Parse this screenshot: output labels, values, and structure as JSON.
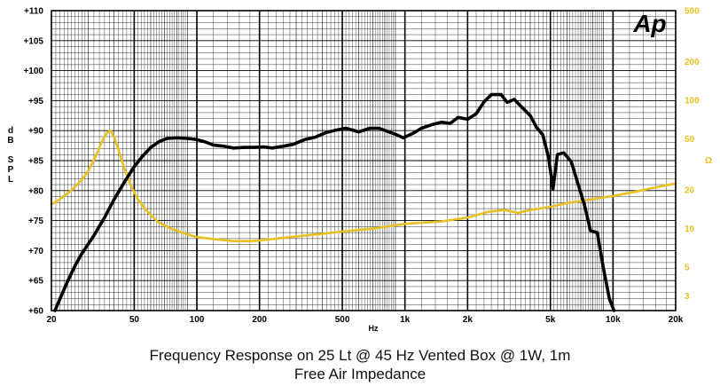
{
  "chart_data": {
    "type": "line",
    "caption_line1": "Frequency Response on 25 Lt @ 45 Hz Vented Box @ 1W, 1m",
    "caption_line2": "Free Air Impedance",
    "logo": "Ap",
    "x_axis": {
      "label": "Hz",
      "scale": "log",
      "range": [
        20,
        20000
      ],
      "tick_labels": [
        {
          "value": 20,
          "label": "20"
        },
        {
          "value": 50,
          "label": "50"
        },
        {
          "value": 100,
          "label": "100"
        },
        {
          "value": 200,
          "label": "200"
        },
        {
          "value": 500,
          "label": "500"
        },
        {
          "value": 1000,
          "label": "1k"
        },
        {
          "value": 2000,
          "label": "2k"
        },
        {
          "value": 5000,
          "label": "5k"
        },
        {
          "value": 10000,
          "label": "10k"
        },
        {
          "value": 20000,
          "label": "20k"
        }
      ]
    },
    "y_left": {
      "label": "dB SPL",
      "label_lines": [
        "d",
        "B",
        "",
        "S",
        "P",
        "L"
      ],
      "range": [
        60,
        110
      ],
      "tick_labels": [
        {
          "value": 110,
          "label": "+110"
        },
        {
          "value": 105,
          "label": "+105"
        },
        {
          "value": 100,
          "label": "+100"
        },
        {
          "value": 95,
          "label": "+95"
        },
        {
          "value": 90,
          "label": "+90"
        },
        {
          "value": 85,
          "label": "+85"
        },
        {
          "value": 80,
          "label": "+80"
        },
        {
          "value": 75,
          "label": "+75"
        },
        {
          "value": 70,
          "label": "+70"
        },
        {
          "value": 65,
          "label": "+65"
        },
        {
          "value": 60,
          "label": "+60"
        }
      ]
    },
    "y_right": {
      "label": "Ω",
      "scale": "log",
      "range": [
        2.3,
        500
      ],
      "tick_labels": [
        {
          "value": 500,
          "label": "500"
        },
        {
          "value": 200,
          "label": "200"
        },
        {
          "value": 100,
          "label": "100"
        },
        {
          "value": 50,
          "label": "50"
        },
        {
          "value": 20,
          "label": "20"
        },
        {
          "value": 10,
          "label": "10"
        },
        {
          "value": 5,
          "label": "5"
        },
        {
          "value": 3,
          "label": "3"
        }
      ]
    },
    "grid": true,
    "series": [
      {
        "axis": "left",
        "color": "#000000",
        "points": [
          [
            20.8,
            60
          ],
          [
            22,
            62
          ],
          [
            24,
            65
          ],
          [
            26,
            67.5
          ],
          [
            28,
            69.5
          ],
          [
            32,
            72.5
          ],
          [
            36,
            75.5
          ],
          [
            40,
            78.5
          ],
          [
            45,
            81.5
          ],
          [
            50,
            84
          ],
          [
            55,
            85.8
          ],
          [
            60,
            87.2
          ],
          [
            66,
            88.2
          ],
          [
            72,
            88.7
          ],
          [
            80,
            88.8
          ],
          [
            90,
            88.7
          ],
          [
            100,
            88.5
          ],
          [
            110,
            88.1
          ],
          [
            120,
            87.6
          ],
          [
            135,
            87.4
          ],
          [
            150,
            87.1
          ],
          [
            170,
            87.2
          ],
          [
            190,
            87.2
          ],
          [
            210,
            87.3
          ],
          [
            230,
            87.1
          ],
          [
            260,
            87.4
          ],
          [
            290,
            87.7
          ],
          [
            330,
            88.5
          ],
          [
            370,
            88.9
          ],
          [
            420,
            89.7
          ],
          [
            470,
            90.1
          ],
          [
            520,
            90.4
          ],
          [
            600,
            89.8
          ],
          [
            680,
            90.4
          ],
          [
            750,
            90.4
          ],
          [
            820,
            89.9
          ],
          [
            900,
            89.4
          ],
          [
            980,
            88.8
          ],
          [
            1040,
            89.2
          ],
          [
            1100,
            89.6
          ],
          [
            1200,
            90.4
          ],
          [
            1350,
            91.0
          ],
          [
            1500,
            91.4
          ],
          [
            1650,
            91.2
          ],
          [
            1800,
            92.2
          ],
          [
            2000,
            91.9
          ],
          [
            2200,
            92.8
          ],
          [
            2400,
            94.8
          ],
          [
            2600,
            96.0
          ],
          [
            2900,
            96.0
          ],
          [
            3100,
            94.7
          ],
          [
            3350,
            95.2
          ],
          [
            3600,
            94.1
          ],
          [
            4000,
            92.5
          ],
          [
            4300,
            90.5
          ],
          [
            4600,
            89.3
          ],
          [
            4900,
            85.5
          ],
          [
            5150,
            80.3
          ],
          [
            5400,
            86.0
          ],
          [
            5800,
            86.3
          ],
          [
            6300,
            84.8
          ],
          [
            6800,
            81.0
          ],
          [
            7300,
            77.5
          ],
          [
            7800,
            73.3
          ],
          [
            8400,
            73.0
          ],
          [
            9000,
            67.0
          ],
          [
            9600,
            62.0
          ],
          [
            10100,
            60
          ]
        ]
      },
      {
        "axis": "right",
        "color": "#E8C020",
        "points": [
          [
            20,
            15.5
          ],
          [
            22,
            17
          ],
          [
            25,
            20
          ],
          [
            28,
            24
          ],
          [
            30,
            28
          ],
          [
            33,
            38
          ],
          [
            35,
            48
          ],
          [
            37,
            56
          ],
          [
            38.5,
            58
          ],
          [
            40,
            52
          ],
          [
            42,
            41
          ],
          [
            45,
            29
          ],
          [
            48,
            22
          ],
          [
            52,
            17
          ],
          [
            58,
            13.5
          ],
          [
            65,
            11.3
          ],
          [
            75,
            10.0
          ],
          [
            85,
            9.3
          ],
          [
            100,
            8.6
          ],
          [
            120,
            8.3
          ],
          [
            150,
            8.0
          ],
          [
            180,
            8.0
          ],
          [
            200,
            8.1
          ],
          [
            250,
            8.4
          ],
          [
            300,
            8.7
          ],
          [
            400,
            9.1
          ],
          [
            500,
            9.5
          ],
          [
            700,
            10.0
          ],
          [
            1000,
            10.9
          ],
          [
            1500,
            11.4
          ],
          [
            2000,
            12.2
          ],
          [
            2500,
            13.5
          ],
          [
            3000,
            14.0
          ],
          [
            3500,
            13.3
          ],
          [
            4000,
            14.0
          ],
          [
            5000,
            14.8
          ],
          [
            6000,
            15.8
          ],
          [
            8000,
            17.0
          ],
          [
            10000,
            18.0
          ],
          [
            13000,
            19.5
          ],
          [
            16000,
            21.0
          ],
          [
            20000,
            22.5
          ]
        ]
      }
    ]
  }
}
